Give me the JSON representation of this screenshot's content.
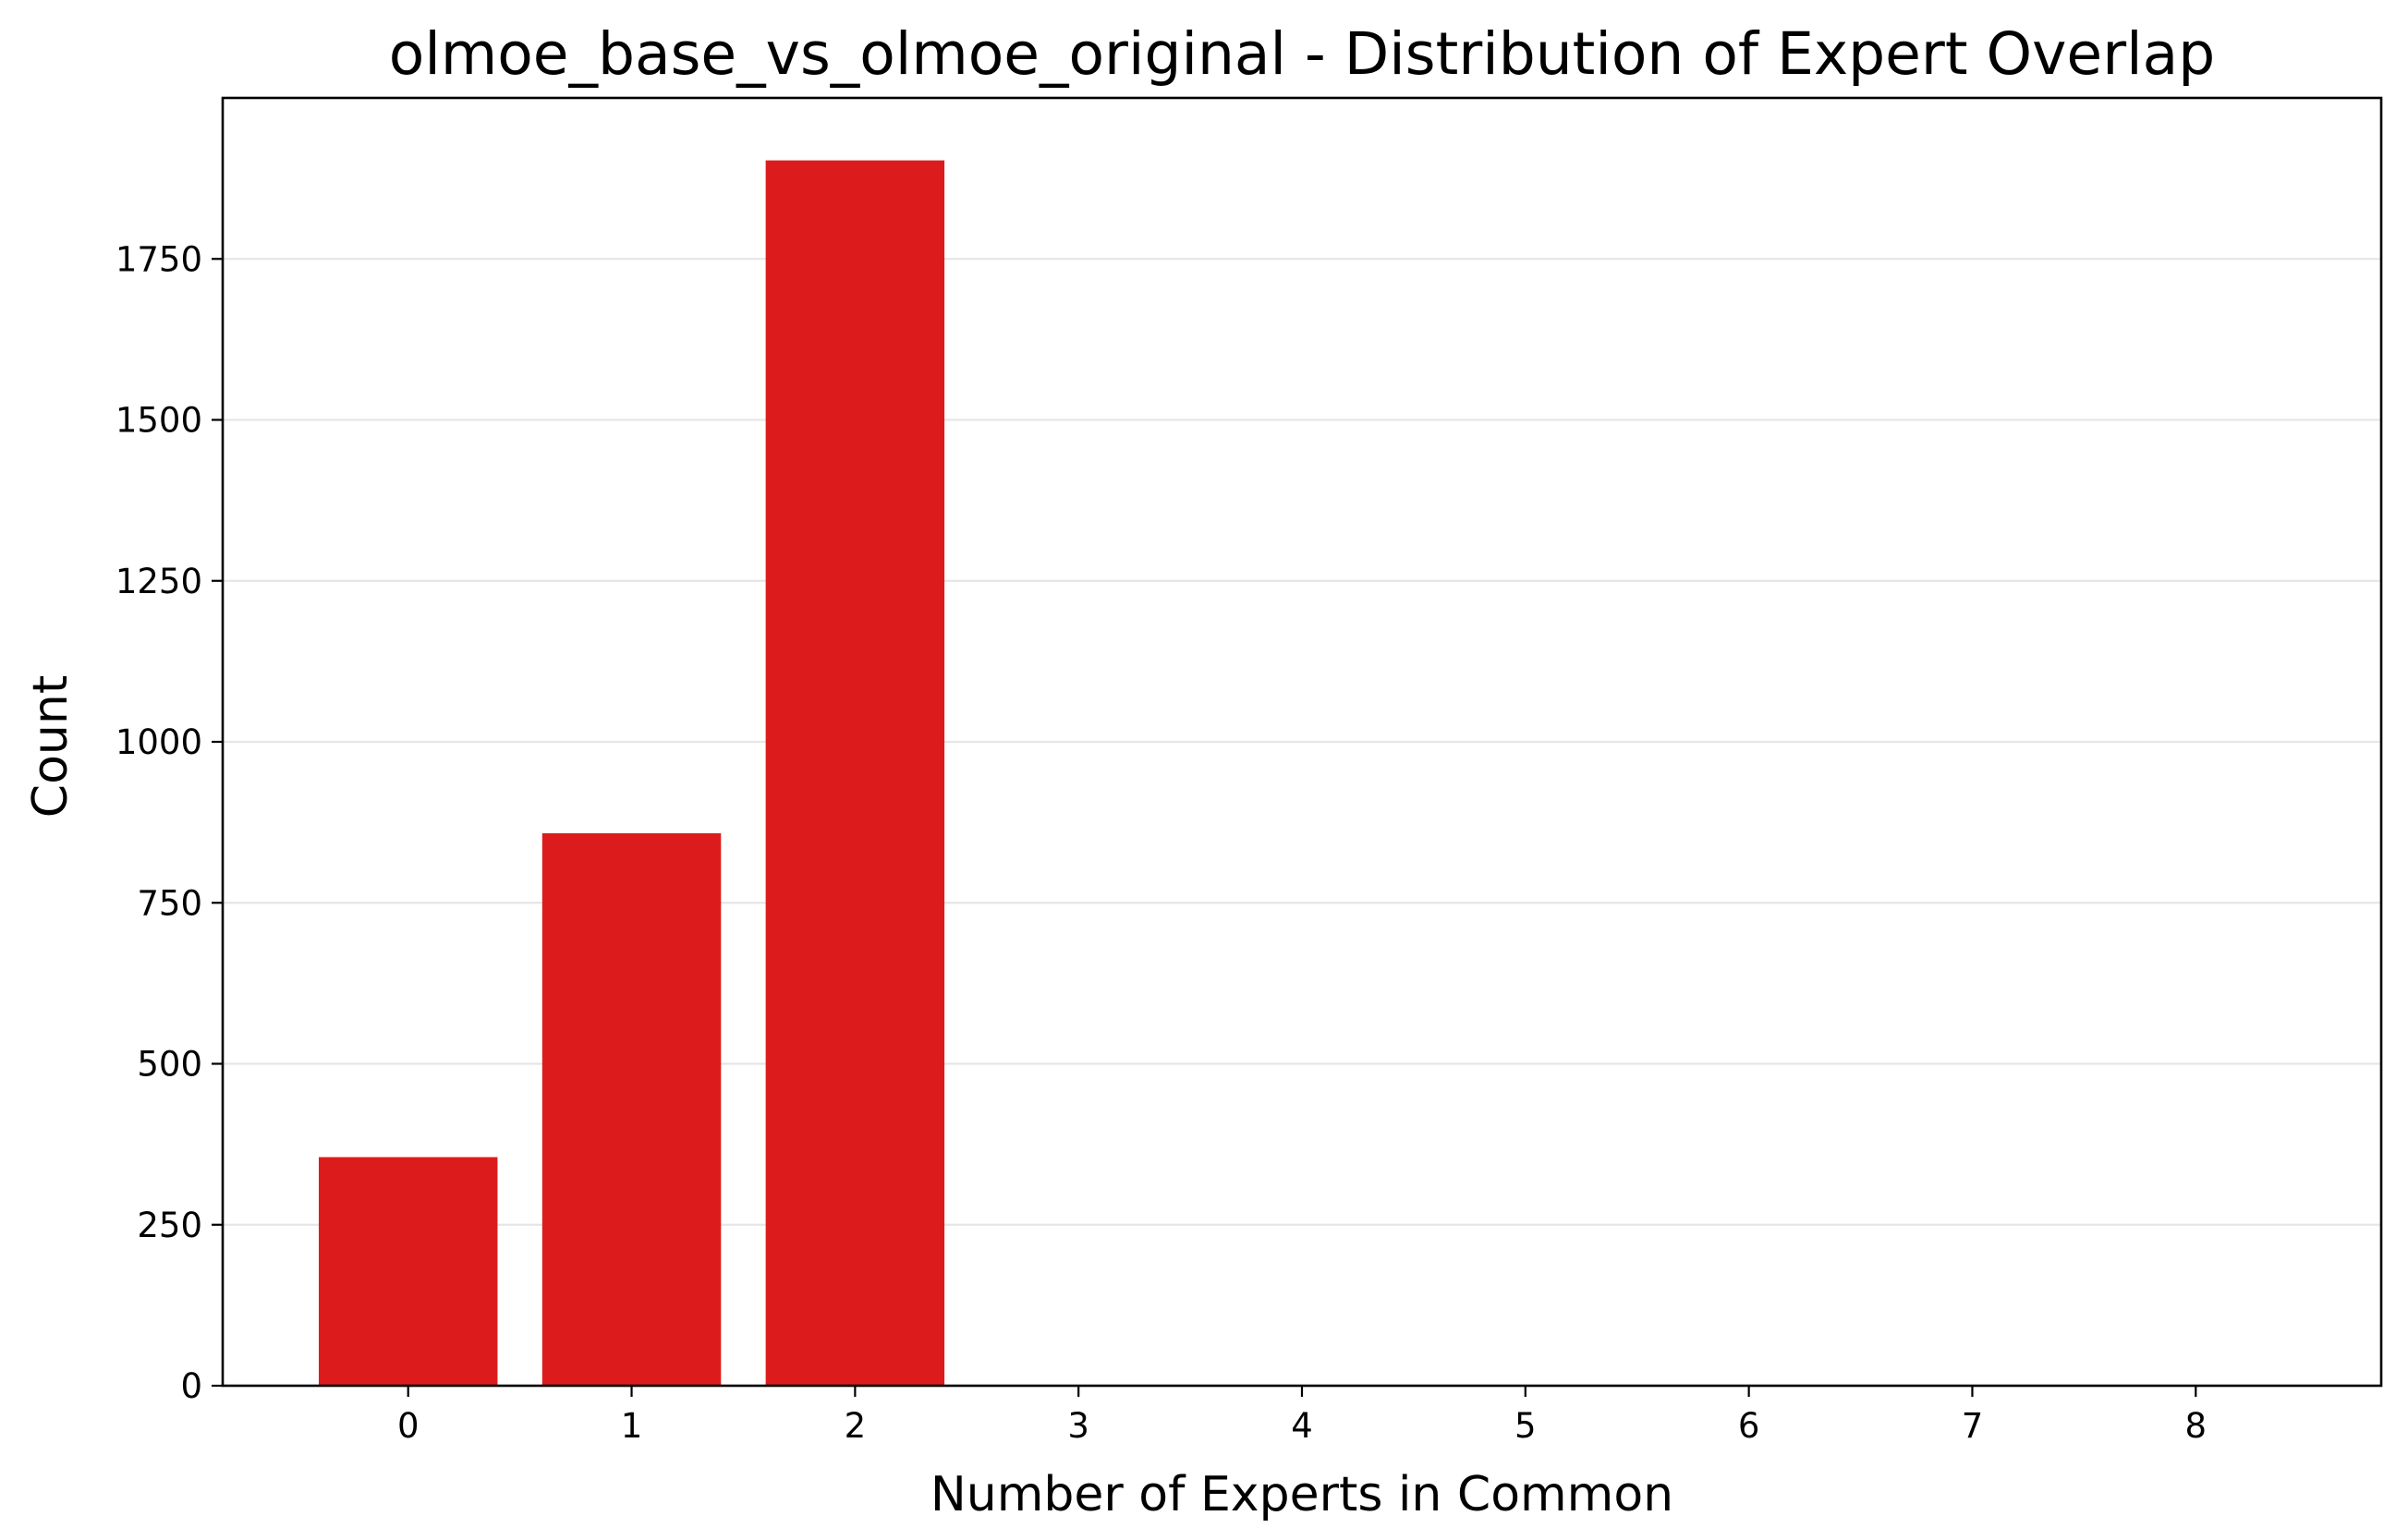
{
  "chart_data": {
    "type": "bar",
    "title": "olmoe_base_vs_olmoe_original - Distribution of Expert Overlap",
    "xlabel": "Number of Experts in Common",
    "ylabel": "Count",
    "categories": [
      "0",
      "1",
      "2",
      "3",
      "4",
      "5",
      "6",
      "7",
      "8"
    ],
    "values": [
      355,
      858,
      1903,
      0,
      0,
      0,
      0,
      0,
      0
    ],
    "xlim": [
      -0.83,
      8.83
    ],
    "ylim": [
      0,
      2000
    ],
    "yticks": [
      0,
      250,
      500,
      750,
      1000,
      1250,
      1500,
      1750
    ],
    "grid": {
      "y": true,
      "x": false
    },
    "legend": "none",
    "colors": {
      "bar": "#dc1c1c",
      "grid": "#e6e6e6",
      "axis": "#000000"
    }
  }
}
